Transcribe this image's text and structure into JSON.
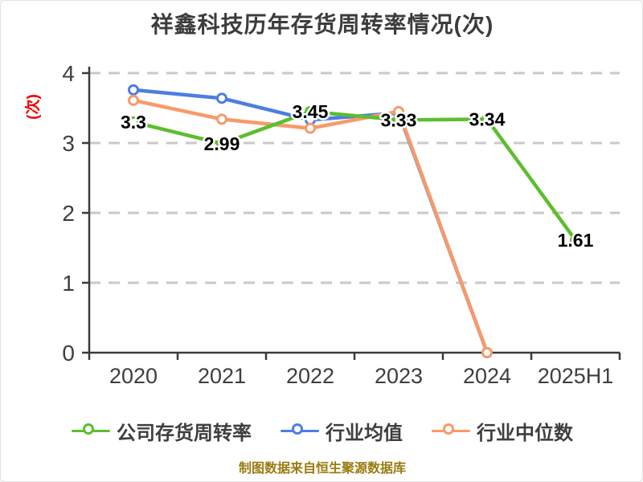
{
  "title": "祥鑫科技历年存货周转率情况(次)",
  "y_axis_unit": "(次)",
  "footer": "制图数据来自恒生聚源数据库",
  "colors": {
    "company": "#5cbe2f",
    "industry_mean": "#4d7edf",
    "industry_median": "#f79a6b",
    "axis": "#3a3a3a",
    "grid": "#c9c9c9",
    "tick_text": "#3e3e3e",
    "data_label": "#000000",
    "unit_label": "#ee0000",
    "footer_text": "#9a7b10",
    "title_text": "#3c3c3c"
  },
  "chart_data": {
    "type": "line",
    "title": "祥鑫科技历年存货周转率情况(次)",
    "categories": [
      "2020",
      "2021",
      "2022",
      "2023",
      "2024",
      "2025H1"
    ],
    "series": [
      {
        "name": "公司存货周转率",
        "color": "#5cbe2f",
        "labeled": true,
        "values": [
          3.3,
          2.99,
          3.45,
          3.33,
          3.34,
          1.61
        ]
      },
      {
        "name": "行业均值",
        "color": "#4d7edf",
        "labeled": false,
        "values": [
          3.76,
          3.64,
          3.33,
          3.43,
          0,
          null
        ]
      },
      {
        "name": "行业中位数",
        "color": "#f79a6b",
        "labeled": false,
        "values": [
          3.61,
          3.34,
          3.21,
          3.45,
          0,
          null
        ]
      }
    ],
    "ylabel": "(次)",
    "ylim": [
      0,
      4
    ],
    "y_ticks": [
      0,
      1,
      2,
      3,
      4
    ],
    "grid": "horizontal-dashed",
    "legend_position": "bottom",
    "marker": "open-circle"
  }
}
